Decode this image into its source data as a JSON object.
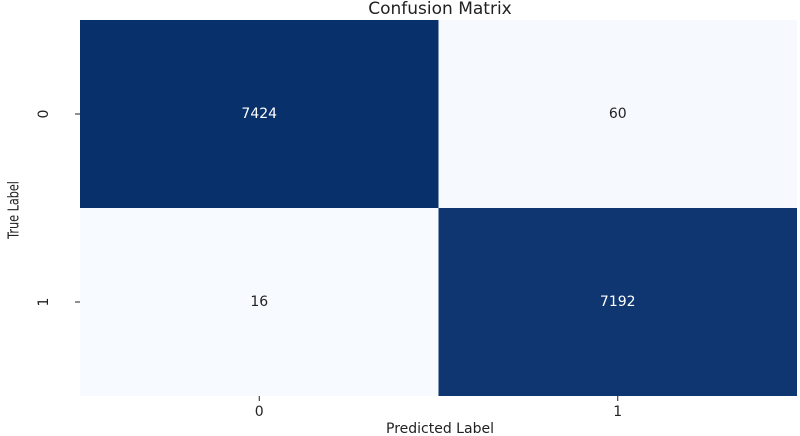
{
  "chart_data": {
    "type": "heatmap",
    "title": "Confusion Matrix",
    "x_label": "Predicted Label",
    "y_label": "True Label",
    "x_categories": [
      "0",
      "1"
    ],
    "y_categories": [
      "0",
      "1"
    ],
    "z": [
      [
        7424,
        60
      ],
      [
        16,
        7192
      ]
    ],
    "colors": [
      "#f7fbff",
      "#08306b"
    ]
  }
}
